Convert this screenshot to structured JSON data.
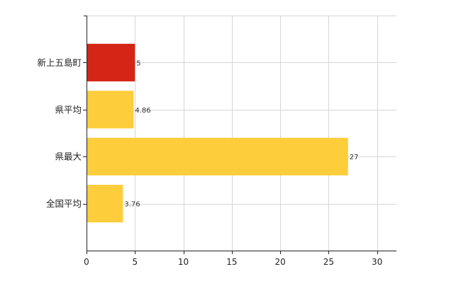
{
  "chart_data": {
    "type": "bar",
    "orientation": "horizontal",
    "categories": [
      "新上五島町",
      "県平均",
      "県最大",
      "全国平均"
    ],
    "values": [
      5,
      4.86,
      27,
      3.76
    ],
    "value_labels": [
      "5",
      "4.86",
      "27",
      "3.76"
    ],
    "bar_colors": [
      "#d42517",
      "#fdcd3b",
      "#fdcd3b",
      "#fdcd3b"
    ],
    "xlim": [
      0,
      32
    ],
    "xticks": [
      0,
      5,
      10,
      15,
      20,
      25,
      30
    ],
    "title": "",
    "xlabel": "",
    "ylabel": "",
    "grid": true,
    "legend": "none"
  }
}
